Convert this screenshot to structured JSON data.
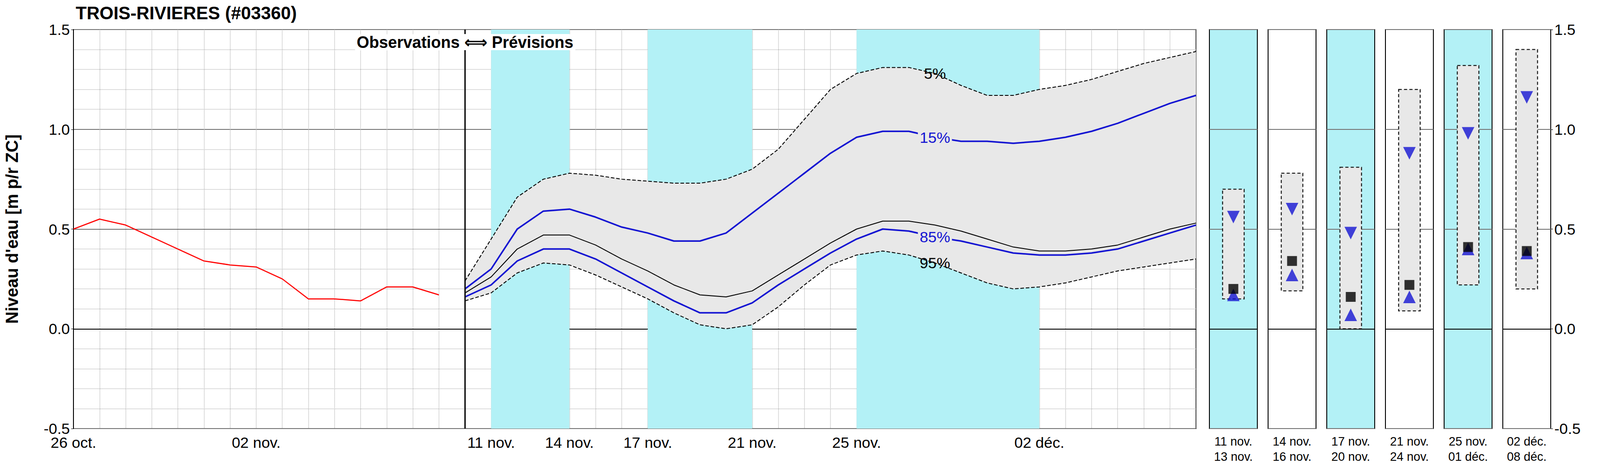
{
  "chart_data": {
    "type": "line",
    "title": "TROIS-RIVIERES (#03360)",
    "y_label": "Niveau d'eau [m p/r ZC]",
    "annotation": "Observations ⟺ Prévisions",
    "categories": [
      "26 oct.",
      null,
      null,
      null,
      null,
      null,
      null,
      "02 nov.",
      null,
      null,
      null,
      null,
      null,
      null,
      null,
      null,
      "11 nov.",
      null,
      null,
      "14 nov.",
      null,
      null,
      "17 nov.",
      null,
      null,
      null,
      "21 nov.",
      null,
      null,
      null,
      "25 nov.",
      null,
      null,
      null,
      null,
      null,
      null,
      "02 déc.",
      null,
      null,
      null,
      null,
      null,
      null
    ],
    "ylim": [
      -0.5,
      1.5
    ],
    "yticks": [
      -0.5,
      {
        "value": 0,
        "label": "0.0"
      },
      0.5,
      {
        "value": 1,
        "label": "1.0"
      },
      1.5
    ],
    "grid": true,
    "bands": [
      {
        "from": "11 nov.",
        "to": "14 nov.",
        "color": "#b3f1f6"
      },
      {
        "from": "17 nov.",
        "to": "21 nov.",
        "color": "#b3f1f6"
      },
      {
        "from": "25 nov.",
        "to": "02 déc.",
        "color": "#b3f1f6"
      }
    ],
    "fill": {
      "between": [
        "5%",
        "95%"
      ],
      "color": "#e8e8e8"
    },
    "series": [
      {
        "color": "#ff0000",
        "line_style": "solid",
        "values": [
          0.5,
          0.55,
          0.52,
          0.46,
          0.4,
          0.34,
          0.32,
          0.31,
          0.25,
          0.15,
          0.15,
          0.14,
          0.21,
          0.21,
          0.17,
          null,
          null,
          null,
          null,
          null,
          null,
          null,
          null,
          null,
          null,
          null,
          null,
          null,
          null,
          null,
          null,
          null,
          null,
          null,
          null,
          null,
          null,
          null,
          null,
          null,
          null,
          null,
          null,
          null
        ]
      },
      {
        "name": "5%",
        "color": "#000000",
        "line_style": "dashed",
        "values": [
          null,
          null,
          null,
          null,
          null,
          null,
          null,
          null,
          null,
          null,
          null,
          null,
          null,
          null,
          null,
          0.24,
          0.45,
          0.66,
          0.75,
          0.78,
          0.77,
          0.75,
          0.74,
          0.73,
          0.73,
          0.75,
          0.8,
          0.9,
          1.05,
          1.2,
          1.28,
          1.31,
          1.31,
          1.28,
          1.22,
          1.17,
          1.17,
          1.2,
          1.22,
          1.25,
          1.29,
          1.33,
          1.36,
          1.39
        ],
        "period_values": [
          0.7,
          0.78,
          0.81,
          1.2,
          1.32,
          1.4
        ]
      },
      {
        "name": "95%",
        "color": "#000000",
        "line_style": "dashed",
        "values": [
          null,
          null,
          null,
          null,
          null,
          null,
          null,
          null,
          null,
          null,
          null,
          null,
          null,
          null,
          null,
          0.14,
          0.18,
          0.28,
          0.33,
          0.32,
          0.27,
          0.21,
          0.15,
          0.08,
          0.02,
          0.0,
          0.02,
          0.11,
          0.22,
          0.32,
          0.37,
          0.39,
          0.37,
          0.33,
          0.28,
          0.23,
          0.2,
          0.21,
          0.23,
          0.26,
          0.29,
          0.31,
          0.33,
          0.35
        ],
        "period_values": [
          0.15,
          0.19,
          0.0,
          0.09,
          0.22,
          0.2
        ]
      },
      {
        "name": "15%",
        "color": "#1414d2",
        "line_style": "solid",
        "marker": "triangle-down",
        "values": [
          null,
          null,
          null,
          null,
          null,
          null,
          null,
          null,
          null,
          null,
          null,
          null,
          null,
          null,
          null,
          0.2,
          0.3,
          0.5,
          0.59,
          0.6,
          0.56,
          0.51,
          0.48,
          0.44,
          0.44,
          0.48,
          0.58,
          0.68,
          0.78,
          0.88,
          0.96,
          0.99,
          0.99,
          0.96,
          0.94,
          0.94,
          0.93,
          0.94,
          0.96,
          0.99,
          1.03,
          1.08,
          1.13,
          1.17
        ],
        "period_values": [
          0.56,
          0.6,
          0.48,
          0.88,
          0.98,
          1.16
        ]
      },
      {
        "name": "85%",
        "color": "#1414d2",
        "line_style": "solid",
        "marker": "triangle-up",
        "values": [
          null,
          null,
          null,
          null,
          null,
          null,
          null,
          null,
          null,
          null,
          null,
          null,
          null,
          null,
          null,
          0.16,
          0.22,
          0.34,
          0.4,
          0.4,
          0.35,
          0.28,
          0.21,
          0.14,
          0.08,
          0.08,
          0.13,
          0.22,
          0.3,
          0.38,
          0.45,
          0.5,
          0.49,
          0.46,
          0.44,
          0.41,
          0.38,
          0.37,
          0.37,
          0.38,
          0.4,
          0.44,
          0.48,
          0.52
        ],
        "period_values": [
          0.17,
          0.27,
          0.07,
          0.16,
          0.4,
          0.38
        ]
      },
      {
        "color": "#000000",
        "line_style": "solid",
        "marker": "square",
        "values": [
          null,
          null,
          null,
          null,
          null,
          null,
          null,
          null,
          null,
          null,
          null,
          null,
          null,
          null,
          null,
          0.18,
          0.26,
          0.4,
          0.47,
          0.47,
          0.42,
          0.35,
          0.29,
          0.22,
          0.17,
          0.16,
          0.19,
          0.27,
          0.35,
          0.43,
          0.5,
          0.54,
          0.54,
          0.52,
          0.49,
          0.45,
          0.41,
          0.39,
          0.39,
          0.4,
          0.42,
          0.46,
          0.5,
          0.53
        ],
        "period_values": [
          0.2,
          0.34,
          0.16,
          0.22,
          0.41,
          0.39
        ]
      }
    ],
    "periods": [
      {
        "start": "11 nov.",
        "end": "13 nov.",
        "color": "#b3f1f6"
      },
      {
        "start": "14 nov.",
        "end": "16 nov.",
        "color": "#ffffff"
      },
      {
        "start": "17 nov.",
        "end": "20 nov.",
        "color": "#b3f1f6"
      },
      {
        "start": "21 nov.",
        "end": "24 nov.",
        "color": "#ffffff"
      },
      {
        "start": "25 nov.",
        "end": "01 déc.",
        "color": "#b3f1f6"
      },
      {
        "start": "02 déc.",
        "end": "08 déc.",
        "color": "#ffffff"
      }
    ]
  }
}
